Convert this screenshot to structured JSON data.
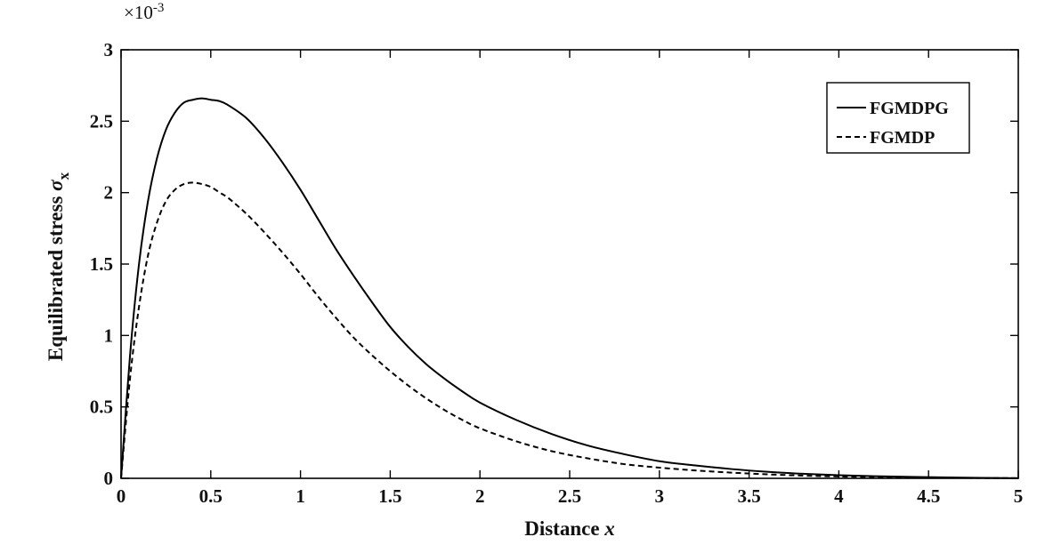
{
  "chart_data": {
    "type": "line",
    "xlabel": {
      "text": "Distance ",
      "var": "x"
    },
    "ylabel": {
      "text": "Equilibrated stress ",
      "sym": "σ",
      "sub": "x"
    },
    "exponent": {
      "base": "×10",
      "power": "-3"
    },
    "xlim": [
      0,
      5
    ],
    "ylim": [
      0,
      3
    ],
    "xticks": [
      0,
      0.5,
      1,
      1.5,
      2,
      2.5,
      3,
      3.5,
      4,
      4.5,
      5
    ],
    "xtick_labels": [
      "0",
      "0.5",
      "1",
      "1.5",
      "2",
      "2.5",
      "3",
      "3.5",
      "4",
      "4.5",
      "5"
    ],
    "yticks": [
      0,
      0.5,
      1,
      1.5,
      2,
      2.5,
      3
    ],
    "ytick_labels": [
      "0",
      "0.5",
      "1",
      "1.5",
      "2",
      "2.5",
      "3"
    ],
    "grid": false,
    "legend_position": "top-right",
    "x": [
      0,
      0.05,
      0.1,
      0.15,
      0.2,
      0.25,
      0.3,
      0.35,
      0.4,
      0.45,
      0.5,
      0.55,
      0.6,
      0.7,
      0.8,
      0.9,
      1.0,
      1.1,
      1.2,
      1.3,
      1.4,
      1.5,
      1.6,
      1.7,
      1.8,
      1.9,
      2.0,
      2.2,
      2.4,
      2.6,
      2.8,
      3.0,
      3.2,
      3.4,
      3.6,
      3.8,
      4.0,
      4.2,
      4.4,
      4.6,
      4.8,
      5.0
    ],
    "series": [
      {
        "name": "FGMDPG",
        "style": "solid",
        "values": [
          0,
          0.86,
          1.5,
          1.94,
          2.24,
          2.44,
          2.56,
          2.63,
          2.65,
          2.66,
          2.65,
          2.64,
          2.61,
          2.52,
          2.38,
          2.21,
          2.02,
          1.81,
          1.6,
          1.41,
          1.23,
          1.06,
          0.92,
          0.8,
          0.7,
          0.61,
          0.53,
          0.41,
          0.31,
          0.23,
          0.17,
          0.12,
          0.09,
          0.065,
          0.046,
          0.032,
          0.022,
          0.015,
          0.01,
          0.006,
          0.003,
          0.001
        ]
      },
      {
        "name": "FGMDP",
        "style": "dashed",
        "values": [
          0,
          0.7,
          1.2,
          1.56,
          1.79,
          1.94,
          2.02,
          2.06,
          2.07,
          2.06,
          2.04,
          2.0,
          1.96,
          1.85,
          1.72,
          1.58,
          1.43,
          1.27,
          1.12,
          0.98,
          0.86,
          0.75,
          0.65,
          0.56,
          0.48,
          0.41,
          0.35,
          0.26,
          0.19,
          0.14,
          0.1,
          0.075,
          0.055,
          0.04,
          0.028,
          0.019,
          0.013,
          0.009,
          0.006,
          0.004,
          0.002,
          0.001
        ]
      }
    ]
  }
}
